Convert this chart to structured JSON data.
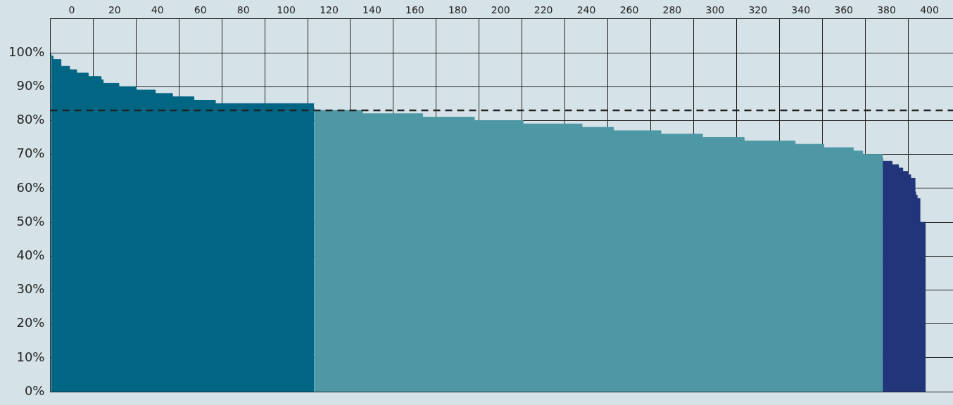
{
  "chart_data": {
    "type": "area",
    "xlim": [
      -10,
      411
    ],
    "ylim": [
      0,
      110
    ],
    "xticks": [
      0,
      {
        "value": 10,
        "label": null
      },
      20,
      {
        "value": 30,
        "label": null
      },
      40,
      {
        "value": 50,
        "label": null
      },
      60,
      {
        "value": 70,
        "label": null
      },
      80,
      {
        "value": 90,
        "label": null
      },
      100,
      {
        "value": 110,
        "label": null
      },
      120,
      {
        "value": 130,
        "label": null
      },
      140,
      {
        "value": 150,
        "label": null
      },
      160,
      {
        "value": 170,
        "label": null
      },
      180,
      {
        "value": 190,
        "label": null
      },
      200,
      {
        "value": 210,
        "label": null
      },
      220,
      {
        "value": 230,
        "label": null
      },
      240,
      {
        "value": 250,
        "label": null
      },
      260,
      {
        "value": 270,
        "label": null
      },
      280,
      {
        "value": 290,
        "label": null
      },
      300,
      {
        "value": 310,
        "label": null
      },
      320,
      {
        "value": 330,
        "label": null
      },
      340,
      {
        "value": 350,
        "label": null
      },
      360,
      {
        "value": 370,
        "label": null
      },
      380,
      {
        "value": 390,
        "label": null
      },
      400
    ],
    "yticks": [
      {
        "value": 0,
        "label": "0%"
      },
      {
        "value": 10,
        "label": "10%"
      },
      {
        "value": 20,
        "label": "20%"
      },
      {
        "value": 30,
        "label": "30%"
      },
      {
        "value": 40,
        "label": "40%"
      },
      {
        "value": 50,
        "label": "50%"
      },
      {
        "value": 60,
        "label": "60%"
      },
      {
        "value": 70,
        "label": "70%"
      },
      {
        "value": 80,
        "label": "80%"
      },
      {
        "value": 90,
        "label": "90%"
      },
      {
        "value": 100,
        "label": "100%"
      }
    ],
    "grid": true,
    "legend": false,
    "series": [
      {
        "color": "#006684",
        "x": [
          -9.7,
          -8.7,
          -5,
          -1,
          2.3,
          7.7,
          13.7,
          14.7,
          22,
          30,
          39,
          47,
          57,
          67,
          85,
          113
        ],
        "values": [
          100,
          99,
          98,
          96,
          95,
          94,
          93,
          92,
          91,
          90,
          89,
          88,
          87,
          86,
          85,
          85
        ]
      },
      {
        "color": "#4e98a6",
        "x": [
          113,
          135.6,
          163.7,
          187.8,
          210.5,
          238,
          252.7,
          274.8,
          294.2,
          313.6,
          337.4,
          350.8,
          364.5,
          368.9,
          373.9,
          378.2
        ],
        "values": [
          84,
          83,
          82,
          81,
          80,
          79,
          78,
          77,
          76,
          75,
          74,
          73,
          72,
          71,
          70,
          70
        ]
      },
      {
        "color": "#22347a",
        "x": [
          378.2,
          382.6,
          385.6,
          387.6,
          390,
          391.3,
          393.3,
          393.6,
          394.3,
          395.6,
          397.3,
          398.3
        ],
        "values": [
          69,
          68,
          67,
          66,
          65,
          64,
          63,
          59,
          58,
          57,
          50,
          50
        ]
      }
    ],
    "ref_lines": [
      {
        "axis": "y",
        "value": 83,
        "color": "#222222",
        "line_style": "dashed"
      }
    ]
  }
}
